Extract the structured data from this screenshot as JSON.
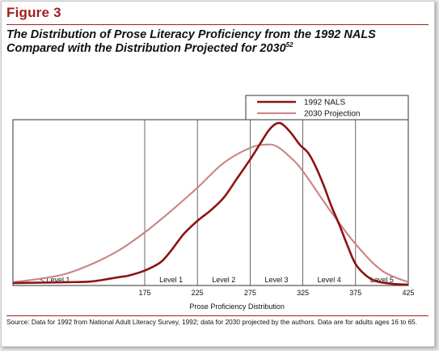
{
  "figure_label": "Figure 3",
  "title_text": "The Distribution of Prose Literacy Proficiency from the 1992 NALS Compared with the Distribution Projected for 2030",
  "title_superscript": "52",
  "source_note": "Source: Data for 1992 from National Adult Literacy Survey, 1992; data for 2030 projected by the authors. Data are for adults ages 16 to 65.",
  "colors": {
    "accent": "#a31f1f",
    "series_1992": "#8e1313",
    "series_2030": "#c98484"
  },
  "chart_data": {
    "type": "line",
    "xlabel": "Prose Proficiency Distribution",
    "ylabel": "",
    "xlim": [
      50,
      425
    ],
    "ylim": [
      0,
      1
    ],
    "x_ticks": [
      175,
      225,
      275,
      325,
      375,
      425
    ],
    "x_tick_labels": [
      "175",
      "225",
      "275",
      "325",
      "375",
      "425"
    ],
    "level_labels": [
      {
        "label": "< Level 1",
        "x": 90
      },
      {
        "label": "Level 1",
        "x": 200
      },
      {
        "label": "Level 2",
        "x": 250
      },
      {
        "label": "Level 3",
        "x": 300
      },
      {
        "label": "Level 4",
        "x": 350
      },
      {
        "label": "Level 5",
        "x": 400
      }
    ],
    "level_boundaries": [
      175,
      225,
      275,
      325,
      375
    ],
    "grid": true,
    "legend_position": "top-right",
    "series": [
      {
        "name": "1992 NALS",
        "x": [
          50,
          100,
          125,
          150,
          160,
          175,
          190,
          200,
          212,
          225,
          237,
          250,
          262,
          275,
          285,
          292,
          298,
          303,
          308,
          315,
          322,
          330,
          337,
          345,
          352,
          360,
          368,
          375,
          385,
          395,
          410,
          425
        ],
        "y": [
          0.015,
          0.02,
          0.025,
          0.05,
          0.06,
          0.09,
          0.14,
          0.21,
          0.31,
          0.39,
          0.45,
          0.53,
          0.64,
          0.76,
          0.86,
          0.93,
          0.97,
          0.98,
          0.96,
          0.91,
          0.85,
          0.8,
          0.72,
          0.6,
          0.48,
          0.36,
          0.23,
          0.13,
          0.06,
          0.025,
          0.01,
          0.005
        ]
      },
      {
        "name": "2030 Projection",
        "x": [
          50,
          75,
          100,
          125,
          150,
          175,
          200,
          225,
          250,
          275,
          290,
          300,
          312,
          325,
          350,
          375,
          400,
          425
        ],
        "y": [
          0.02,
          0.04,
          0.07,
          0.13,
          0.21,
          0.32,
          0.45,
          0.59,
          0.74,
          0.83,
          0.85,
          0.84,
          0.78,
          0.69,
          0.46,
          0.25,
          0.09,
          0.02
        ]
      }
    ]
  }
}
